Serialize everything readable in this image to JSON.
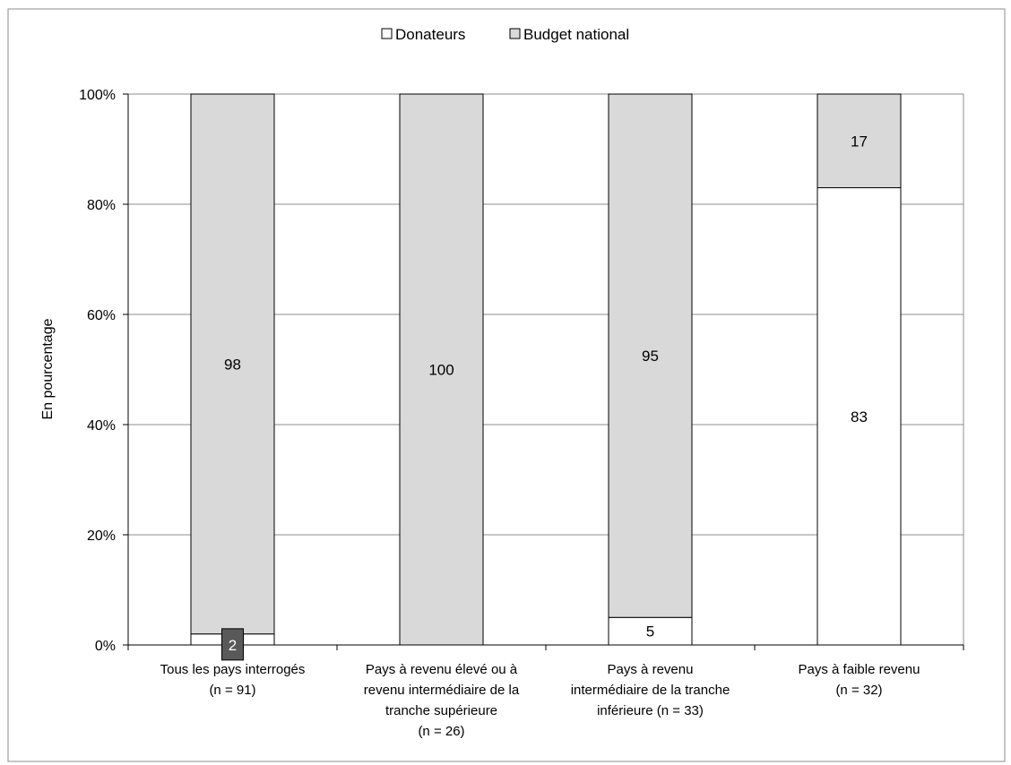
{
  "chart_data": {
    "type": "bar",
    "stacked": true,
    "categories": [
      [
        "Tous les pays interrogés",
        "(n = 91)"
      ],
      [
        "Pays à revenu élevé ou à",
        "revenu intermédiaire de la",
        "tranche supérieure",
        "(n = 26)"
      ],
      [
        "Pays à revenu",
        "intermédiaire de la tranche",
        "inférieure (n = 33)"
      ],
      [
        "Pays à faible revenu",
        "(n = 32)"
      ]
    ],
    "series": [
      {
        "name": "Donateurs",
        "values": [
          2,
          0,
          5,
          83
        ],
        "color": "#ffffff",
        "labels": [
          "2",
          "",
          "5",
          "83"
        ]
      },
      {
        "name": "Budget national",
        "values": [
          98,
          100,
          95,
          17
        ],
        "color": "#d9d9d9",
        "labels": [
          "98",
          "100",
          "95",
          "17"
        ]
      }
    ],
    "ylabel": "En pourcentage",
    "ylim": [
      0,
      100
    ],
    "yticks": [
      0,
      20,
      40,
      60,
      80,
      100
    ],
    "ytick_labels": [
      "0%",
      "20%",
      "40%",
      "60%",
      "80%",
      "100%"
    ],
    "grid": true,
    "legend_position": "top-center",
    "boxed_label": {
      "series": 0,
      "category": 0,
      "fill": "#595959"
    }
  }
}
